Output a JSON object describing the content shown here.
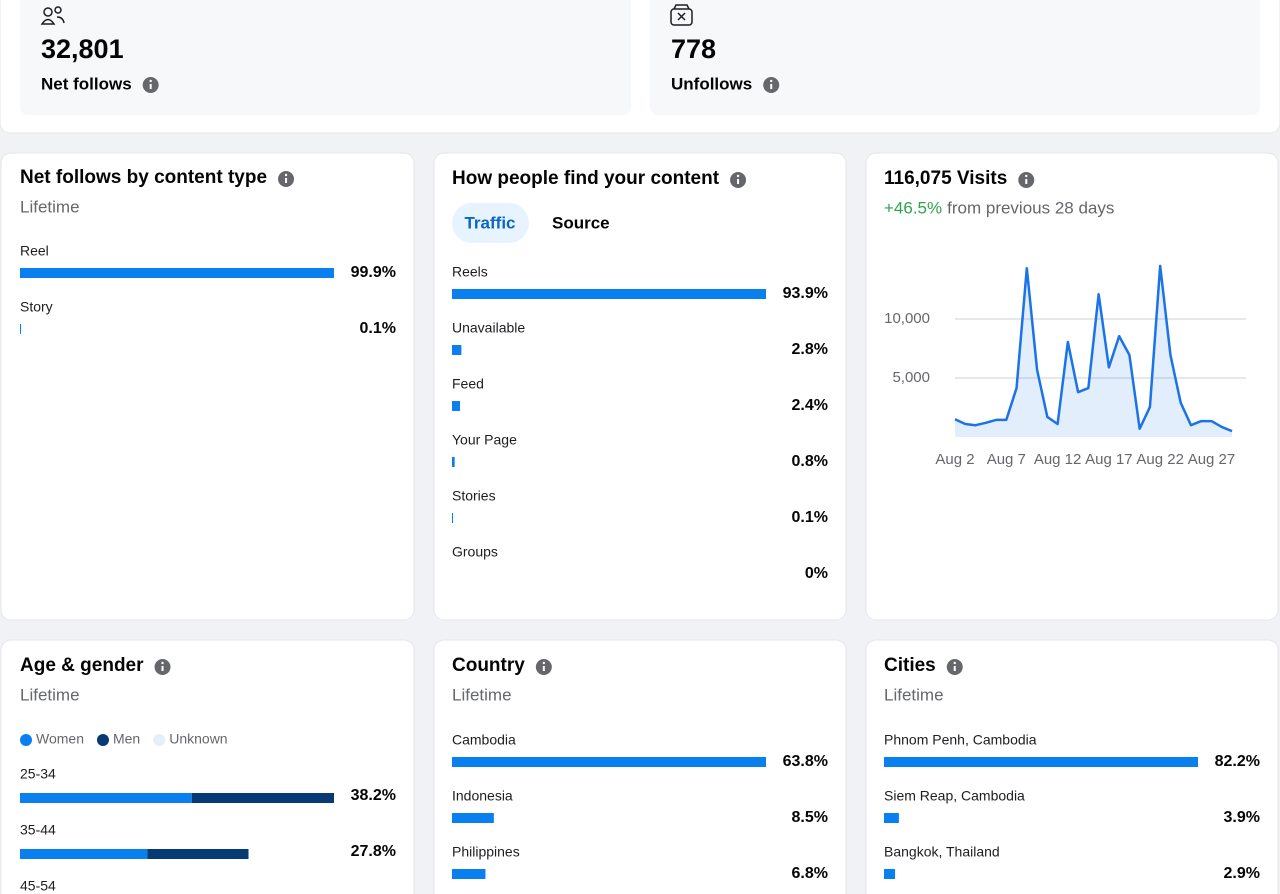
{
  "summary": {
    "net_follows": {
      "value": "32,801",
      "label": "Net follows"
    },
    "unfollows": {
      "value": "778",
      "label": "Unfollows"
    }
  },
  "content_type": {
    "title": "Net follows by content type",
    "subtitle": "Lifetime",
    "rows": [
      {
        "label": "Reel",
        "value": 99.9,
        "value_label": "99.9%"
      },
      {
        "label": "Story",
        "value": 0.1,
        "value_label": "0.1%"
      }
    ]
  },
  "find_content": {
    "title": "How people find your content",
    "tabs": [
      "Traffic",
      "Source"
    ],
    "rows": [
      {
        "label": "Reels",
        "value": 93.9,
        "value_label": "93.9%"
      },
      {
        "label": "Unavailable",
        "value": 2.8,
        "value_label": "2.8%"
      },
      {
        "label": "Feed",
        "value": 2.4,
        "value_label": "2.4%"
      },
      {
        "label": "Your Page",
        "value": 0.8,
        "value_label": "0.8%"
      },
      {
        "label": "Stories",
        "value": 0.1,
        "value_label": "0.1%"
      },
      {
        "label": "Groups",
        "value": 0,
        "value_label": "0%"
      }
    ]
  },
  "visits": {
    "title": "116,075 Visits",
    "change": "+46.5%",
    "change_note": "from previous 28 days",
    "chart": {
      "type": "line",
      "x": [
        "Aug 2",
        null,
        null,
        null,
        null,
        "Aug 7",
        null,
        null,
        null,
        null,
        "Aug 12",
        null,
        null,
        null,
        null,
        "Aug 17",
        null,
        null,
        null,
        null,
        "Aug 22",
        null,
        null,
        null,
        null,
        "Aug 27",
        null,
        null
      ],
      "series": [
        {
          "color": "#1a73e8",
          "values": [
            1500,
            1100,
            1000,
            1200,
            1450,
            1450,
            4150,
            14300,
            5700,
            1700,
            1100,
            8050,
            3800,
            4150,
            12100,
            5900,
            8550,
            6950,
            700,
            2550,
            14500,
            6950,
            2900,
            1000,
            1350,
            1350,
            850,
            500
          ]
        }
      ],
      "ylim": [
        0,
        15000
      ],
      "yticks": [
        {
          "value": 5000,
          "label": "5,000"
        },
        {
          "value": 10000,
          "label": "10,000"
        }
      ],
      "grid": true
    }
  },
  "age_gender": {
    "title": "Age & gender",
    "subtitle": "Lifetime",
    "legend": [
      {
        "name": "Women",
        "color": "#0a7ff0"
      },
      {
        "name": "Men",
        "color": "#063a74"
      },
      {
        "name": "Unknown",
        "color": "#e3f0fc"
      }
    ],
    "rows": [
      {
        "label": "25-34",
        "values": [
          20.9,
          17.3
        ],
        "value_label": "38.2%"
      },
      {
        "label": "35-44",
        "values": [
          15.5,
          12.3
        ],
        "value_label": "27.8%"
      },
      {
        "label": "45-54"
      }
    ]
  },
  "country": {
    "title": "Country",
    "subtitle": "Lifetime",
    "rows": [
      {
        "label": "Cambodia",
        "value": 63.8,
        "value_label": "63.8%"
      },
      {
        "label": "Indonesia",
        "value": 8.5,
        "value_label": "8.5%"
      },
      {
        "label": "Philippines",
        "value": 6.8,
        "value_label": "6.8%"
      }
    ]
  },
  "cities": {
    "title": "Cities",
    "subtitle": "Lifetime",
    "rows": [
      {
        "label": "Phnom Penh, Cambodia",
        "value": 82.2,
        "value_label": "82.2%"
      },
      {
        "label": "Siem Reap, Cambodia",
        "value": 3.9,
        "value_label": "3.9%"
      },
      {
        "label": "Bangkok, Thailand",
        "value": 2.9,
        "value_label": "2.9%"
      }
    ]
  }
}
